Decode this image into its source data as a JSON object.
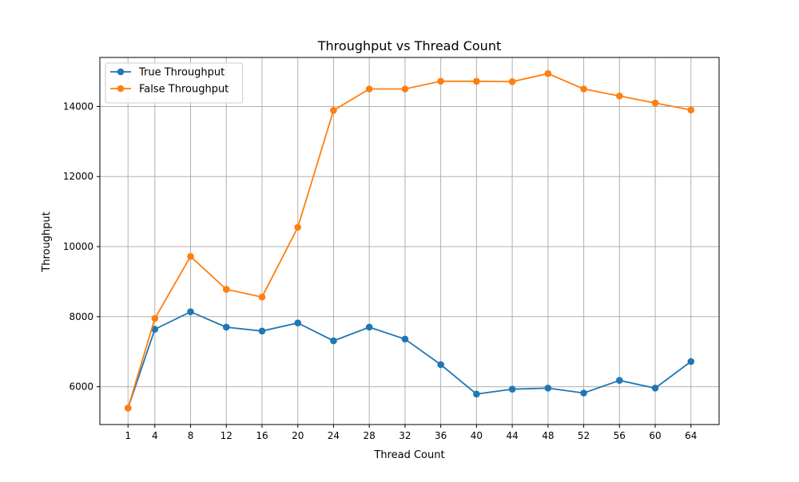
{
  "chart_data": {
    "type": "line",
    "title": "Throughput vs Thread Count",
    "xlabel": "Thread Count",
    "ylabel": "Throughput",
    "x": [
      1,
      4,
      8,
      12,
      16,
      20,
      24,
      28,
      32,
      36,
      40,
      44,
      48,
      52,
      56,
      60,
      64
    ],
    "xlim": [
      -2.15,
      67.15
    ],
    "ylim": [
      4920,
      15400
    ],
    "yticks": [
      6000,
      8000,
      10000,
      12000,
      14000
    ],
    "grid": true,
    "legend_position": "top-left",
    "series": [
      {
        "name": "True Throughput",
        "color": "#1f77b4",
        "values": [
          5390,
          7640,
          8140,
          7700,
          7590,
          7820,
          7310,
          7700,
          7360,
          6630,
          5790,
          5930,
          5960,
          5820,
          6180,
          5960,
          6720
        ]
      },
      {
        "name": "False Throughput",
        "color": "#ff7f0e",
        "values": [
          5390,
          7950,
          9720,
          8780,
          8560,
          10550,
          13890,
          14500,
          14500,
          14720,
          14720,
          14710,
          14940,
          14500,
          14300,
          14100,
          13900
        ]
      }
    ]
  }
}
